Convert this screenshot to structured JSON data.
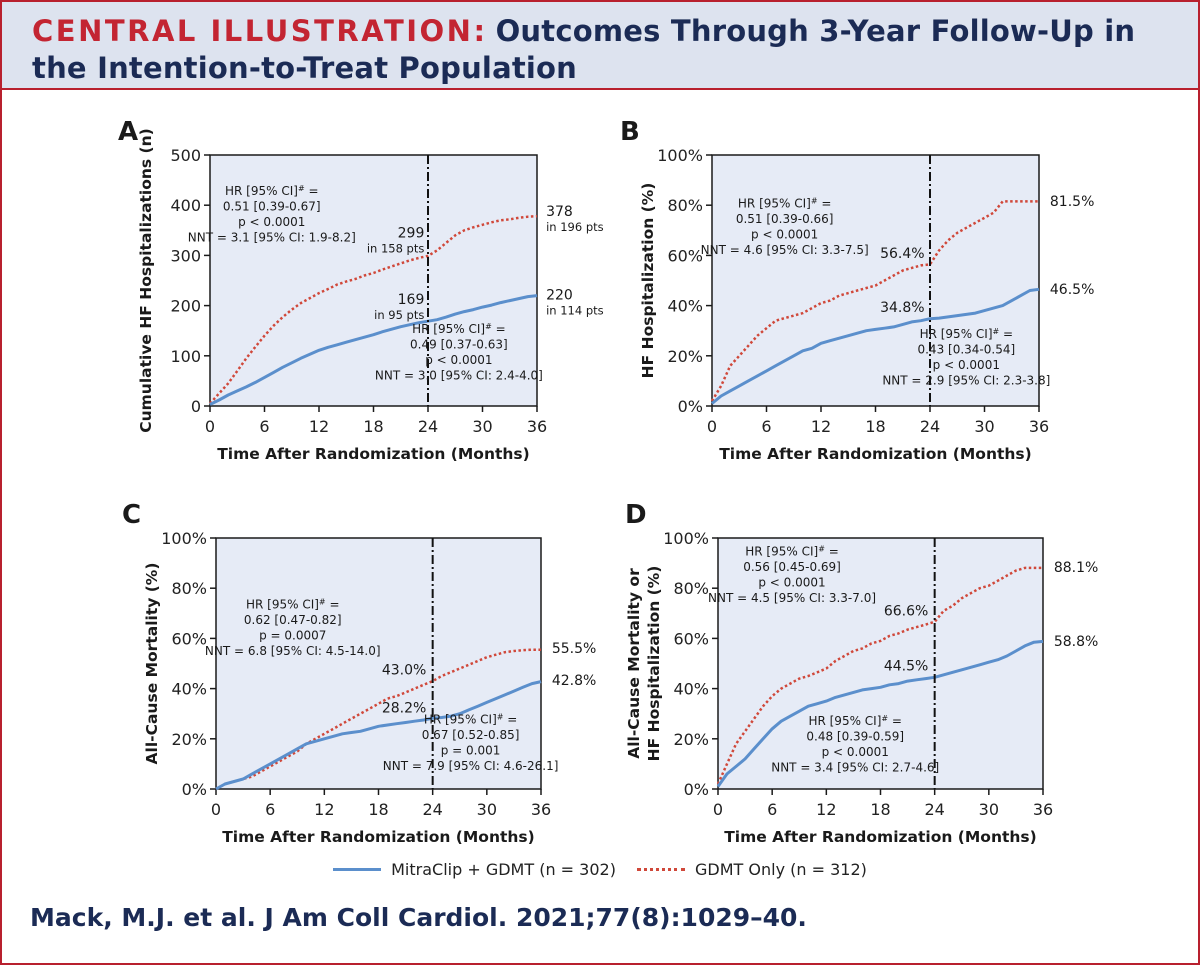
{
  "header": {
    "label": "CENTRAL ILLUSTRATION",
    "colon": ":",
    "title": "Outcomes Through 3-Year Follow-Up in the Intention-to-Treat Population"
  },
  "legend": {
    "mitraclip": "MitraClip + GDMT (n = 302)",
    "gdmt": "GDMT Only (n = 312)"
  },
  "citation": "Mack, M.J. et al. J Am Coll Cardiol. 2021;77(8):1029–40.",
  "colors": {
    "mitraclip": "#5b8fcc",
    "gdmt": "#d0483a",
    "plot_bg": "#e6ebf6",
    "frame": "#b8202e",
    "navy": "#1b2b55",
    "red": "#c32532"
  },
  "chart_data": [
    {
      "panel": "A",
      "type": "line",
      "xlabel": "Time After Randomization (Months)",
      "ylabel": [
        "Cumulative HF Hospitalizations (n)"
      ],
      "xlim": [
        0,
        36
      ],
      "ylim": [
        0,
        500
      ],
      "xticks": [
        0,
        6,
        12,
        18,
        24,
        30,
        36
      ],
      "yticks": [
        0,
        100,
        200,
        300,
        400,
        500
      ],
      "ytick_labels": [
        "0",
        "100",
        "200",
        "300",
        "400",
        "500"
      ],
      "vline_x": 24,
      "series": [
        {
          "name": "GDMT Only (n = 312)",
          "key": "gdmt",
          "x": [
            0,
            1,
            2,
            3,
            4,
            5,
            6,
            7,
            8,
            9,
            10,
            11,
            12,
            13,
            14,
            15,
            16,
            17,
            18,
            19,
            20,
            21,
            22,
            23,
            24,
            25,
            26,
            27,
            28,
            29,
            30,
            31,
            32,
            33,
            34,
            35,
            36
          ],
          "y": [
            5,
            25,
            45,
            70,
            95,
            118,
            140,
            160,
            177,
            192,
            205,
            215,
            225,
            233,
            242,
            248,
            253,
            260,
            265,
            272,
            278,
            284,
            290,
            295,
            299,
            310,
            325,
            340,
            350,
            356,
            361,
            366,
            370,
            372,
            375,
            377,
            378
          ]
        },
        {
          "name": "MitraClip + GDMT (n = 302)",
          "key": "mitraclip",
          "x": [
            0,
            1,
            2,
            3,
            4,
            5,
            6,
            7,
            8,
            9,
            10,
            11,
            12,
            13,
            14,
            15,
            16,
            17,
            18,
            19,
            20,
            21,
            22,
            23,
            24,
            25,
            26,
            27,
            28,
            29,
            30,
            31,
            32,
            33,
            34,
            35,
            36
          ],
          "y": [
            3,
            12,
            22,
            30,
            38,
            47,
            57,
            67,
            77,
            86,
            95,
            103,
            111,
            117,
            122,
            127,
            132,
            137,
            142,
            148,
            153,
            158,
            162,
            166,
            169,
            172,
            177,
            183,
            188,
            192,
            197,
            201,
            206,
            210,
            214,
            218,
            220
          ]
        }
      ],
      "annotations": [
        {
          "id": "hr_gdmt",
          "x": 6.8,
          "y": 420,
          "anchor": "middle",
          "lines": [
            "HR [95% CI]# =",
            "0.51 [0.39-0.67]",
            "p < 0.0001",
            "NNT = 3.1 [95% CI: 1.9-8.2]"
          ]
        },
        {
          "id": "hr_mitra",
          "x": 27.4,
          "y": 145,
          "anchor": "middle",
          "lines": [
            "HR [95% CI]# =",
            "0.49 [0.37-0.63]",
            "p < 0.0001",
            "NNT = 3.0 [95% CI: 2.4-4.0]"
          ]
        },
        {
          "id": "v24_gdmt",
          "x": 23.6,
          "y": 336,
          "anchor": "end",
          "big": "299",
          "small": "in 158 pts"
        },
        {
          "id": "v24_mitra",
          "x": 23.6,
          "y": 203,
          "anchor": "end",
          "big": "169",
          "small": "in 95 pts"
        },
        {
          "id": "end_gdmt",
          "x": 37.0,
          "y": 378,
          "anchor": "start",
          "big": "378",
          "small": "in 196 pts"
        },
        {
          "id": "end_mitra",
          "x": 37.0,
          "y": 212,
          "anchor": "start",
          "big": "220",
          "small": "in 114 pts"
        }
      ]
    },
    {
      "panel": "B",
      "type": "line",
      "xlabel": "Time After Randomization (Months)",
      "ylabel": [
        "HF Hospitalization (%)"
      ],
      "xlim": [
        0,
        36
      ],
      "ylim": [
        0,
        100
      ],
      "xticks": [
        0,
        6,
        12,
        18,
        24,
        30,
        36
      ],
      "yticks": [
        0,
        20,
        40,
        60,
        80,
        100
      ],
      "ytick_labels": [
        "0%",
        "20%",
        "40%",
        "60%",
        "80%",
        "100%"
      ],
      "vline_x": 24,
      "series": [
        {
          "name": "GDMT Only (n = 312)",
          "key": "gdmt",
          "x": [
            0,
            1,
            2,
            3,
            4,
            5,
            6,
            7,
            8,
            9,
            10,
            11,
            12,
            13,
            14,
            15,
            16,
            17,
            18,
            19,
            20,
            21,
            22,
            23,
            24,
            25,
            26,
            27,
            28,
            29,
            30,
            31,
            32,
            33,
            34,
            35,
            36
          ],
          "y": [
            2,
            8,
            16,
            20,
            24,
            28,
            31,
            34,
            35,
            36,
            37,
            39,
            41,
            42,
            44,
            45,
            46,
            47,
            48,
            50,
            52,
            54,
            55,
            56,
            56.4,
            62,
            66,
            69,
            71,
            73,
            75,
            77,
            81.5,
            81.5,
            81.5,
            81.5,
            81.5
          ]
        },
        {
          "name": "MitraClip + GDMT (n = 302)",
          "key": "mitraclip",
          "x": [
            0,
            1,
            2,
            3,
            4,
            5,
            6,
            7,
            8,
            9,
            10,
            11,
            12,
            13,
            14,
            15,
            16,
            17,
            18,
            19,
            20,
            21,
            22,
            23,
            24,
            25,
            26,
            27,
            28,
            29,
            30,
            31,
            32,
            33,
            34,
            35,
            36
          ],
          "y": [
            1,
            4,
            6,
            8,
            10,
            12,
            14,
            16,
            18,
            20,
            22,
            23,
            25,
            26,
            27,
            28,
            29,
            30,
            30.5,
            31,
            31.5,
            32.5,
            33.5,
            34,
            34.8,
            35,
            35.5,
            36,
            36.5,
            37,
            38,
            39,
            40,
            42,
            44,
            46,
            46.5
          ]
        }
      ],
      "annotations": [
        {
          "id": "hr_gdmt",
          "x": 8.0,
          "y": 79,
          "anchor": "middle",
          "lines": [
            "HR [95% CI]# =",
            "0.51 [0.39-0.66]",
            "p < 0.0001",
            "NNT = 4.6 [95% CI: 3.3-7.5]"
          ]
        },
        {
          "id": "hr_mitra",
          "x": 28.0,
          "y": 27,
          "anchor": "middle",
          "lines": [
            "HR [95% CI]# =",
            "0.43 [0.34-0.54]",
            "p < 0.0001",
            "NNT = 2.9 [95% CI: 2.3-3.8]"
          ]
        },
        {
          "id": "v24_gdmt",
          "x": 23.4,
          "y": 59,
          "anchor": "end",
          "big": "56.4%"
        },
        {
          "id": "v24_mitra",
          "x": 23.4,
          "y": 37.4,
          "anchor": "end",
          "big": "34.8%"
        },
        {
          "id": "end_gdmt",
          "x": 37.2,
          "y": 79.7,
          "anchor": "start",
          "big": "81.5%"
        },
        {
          "id": "end_mitra",
          "x": 37.2,
          "y": 44.7,
          "anchor": "start",
          "big": "46.5%"
        }
      ]
    },
    {
      "panel": "C",
      "type": "line",
      "xlabel": "Time After Randomization (Months)",
      "ylabel": [
        "All-Cause Mortality (%)"
      ],
      "xlim": [
        0,
        36
      ],
      "ylim": [
        0,
        100
      ],
      "xticks": [
        0,
        6,
        12,
        18,
        24,
        30,
        36
      ],
      "yticks": [
        0,
        20,
        40,
        60,
        80,
        100
      ],
      "ytick_labels": [
        "0%",
        "20%",
        "40%",
        "60%",
        "80%",
        "100%"
      ],
      "vline_x": 24,
      "series": [
        {
          "name": "GDMT Only (n = 312)",
          "key": "gdmt",
          "x": [
            0,
            1,
            2,
            3,
            4,
            5,
            6,
            7,
            8,
            9,
            10,
            11,
            12,
            13,
            14,
            15,
            16,
            17,
            18,
            19,
            20,
            21,
            22,
            23,
            24,
            25,
            26,
            27,
            28,
            29,
            30,
            31,
            32,
            33,
            34,
            35,
            36
          ],
          "y": [
            0,
            2,
            3,
            4,
            5,
            7,
            9,
            11,
            13,
            15,
            18,
            20,
            22,
            24,
            26,
            28,
            30,
            32,
            34,
            36,
            37,
            38.5,
            40,
            41.5,
            43,
            45,
            46.5,
            48,
            49.5,
            51,
            52.5,
            53.5,
            54.5,
            55,
            55.3,
            55.5,
            55.5
          ]
        },
        {
          "name": "MitraClip + GDMT (n = 302)",
          "key": "mitraclip",
          "x": [
            0,
            1,
            2,
            3,
            4,
            5,
            6,
            7,
            8,
            9,
            10,
            11,
            12,
            13,
            14,
            15,
            16,
            17,
            18,
            19,
            20,
            21,
            22,
            23,
            24,
            25,
            26,
            27,
            28,
            29,
            30,
            31,
            32,
            33,
            34,
            35,
            36
          ],
          "y": [
            0,
            2,
            3,
            4,
            6,
            8,
            10,
            12,
            14,
            16,
            18,
            19,
            20,
            21,
            22,
            22.5,
            23,
            24,
            25,
            25.5,
            26,
            26.5,
            27,
            27.5,
            28.2,
            28.5,
            29,
            30,
            31.5,
            33,
            34.5,
            36,
            37.5,
            39,
            40.5,
            42,
            42.8
          ]
        }
      ],
      "annotations": [
        {
          "id": "hr_gdmt",
          "x": 8.5,
          "y": 72,
          "anchor": "middle",
          "lines": [
            "HR [95% CI]# =",
            "0.62 [0.47-0.82]",
            "p = 0.0007",
            "NNT = 6.8 [95% CI: 4.5-14.0]"
          ]
        },
        {
          "id": "hr_mitra",
          "x": 28.2,
          "y": 26,
          "anchor": "middle",
          "lines": [
            "HR [95% CI]# =",
            "0.67 [0.52-0.85]",
            "p = 0.001",
            "NNT = 7.9 [95% CI: 4.6-26.1]"
          ]
        },
        {
          "id": "v24_gdmt",
          "x": 23.3,
          "y": 45.7,
          "anchor": "end",
          "big": "43.0%"
        },
        {
          "id": "v24_mitra",
          "x": 23.3,
          "y": 30.4,
          "anchor": "end",
          "big": "28.2%"
        },
        {
          "id": "end_gdmt",
          "x": 37.2,
          "y": 54.2,
          "anchor": "start",
          "big": "55.5%"
        },
        {
          "id": "end_mitra",
          "x": 37.2,
          "y": 41.4,
          "anchor": "start",
          "big": "42.8%"
        }
      ]
    },
    {
      "panel": "D",
      "type": "line",
      "xlabel": "Time After Randomization (Months)",
      "ylabel": [
        "All-Cause Mortality or",
        "HF Hospitalization (%)"
      ],
      "xlim": [
        0,
        36
      ],
      "ylim": [
        0,
        100
      ],
      "xticks": [
        0,
        6,
        12,
        18,
        24,
        30,
        36
      ],
      "yticks": [
        0,
        20,
        40,
        60,
        80,
        100
      ],
      "ytick_labels": [
        "0%",
        "20%",
        "40%",
        "60%",
        "80%",
        "100%"
      ],
      "vline_x": 24,
      "series": [
        {
          "name": "GDMT Only (n = 312)",
          "key": "gdmt",
          "x": [
            0,
            1,
            2,
            3,
            4,
            5,
            6,
            7,
            8,
            9,
            10,
            11,
            12,
            13,
            14,
            15,
            16,
            17,
            18,
            19,
            20,
            21,
            22,
            23,
            24,
            25,
            26,
            27,
            28,
            29,
            30,
            31,
            32,
            33,
            34,
            35,
            36
          ],
          "y": [
            2,
            10,
            18,
            23,
            28,
            33,
            37,
            40,
            42,
            44,
            45,
            46.5,
            48,
            51,
            53,
            55,
            56,
            58,
            59,
            61,
            62,
            63.5,
            64.5,
            65.5,
            66.6,
            71,
            73,
            76,
            78,
            80,
            81,
            83,
            85,
            87,
            88.1,
            88.1,
            88.1
          ]
        },
        {
          "name": "MitraClip + GDMT (n = 302)",
          "key": "mitraclip",
          "x": [
            0,
            1,
            2,
            3,
            4,
            5,
            6,
            7,
            8,
            9,
            10,
            11,
            12,
            13,
            14,
            15,
            16,
            17,
            18,
            19,
            20,
            21,
            22,
            23,
            24,
            25,
            26,
            27,
            28,
            29,
            30,
            31,
            32,
            33,
            34,
            35,
            36
          ],
          "y": [
            1,
            6,
            9,
            12,
            16,
            20,
            24,
            27,
            29,
            31,
            33,
            34,
            35,
            36.5,
            37.5,
            38.5,
            39.5,
            40,
            40.5,
            41.5,
            42,
            43,
            43.5,
            44,
            44.5,
            45.5,
            46.5,
            47.5,
            48.5,
            49.5,
            50.5,
            51.5,
            53,
            55,
            57,
            58.5,
            58.8
          ]
        }
      ],
      "annotations": [
        {
          "id": "hr_gdmt",
          "x": 8.2,
          "y": 93,
          "anchor": "middle",
          "lines": [
            "HR [95% CI]# =",
            "0.56 [0.45-0.69]",
            "p < 0.0001",
            "NNT = 4.5 [95% CI: 3.3-7.0]"
          ]
        },
        {
          "id": "hr_mitra",
          "x": 15.2,
          "y": 25.5,
          "anchor": "middle",
          "lines": [
            "HR [95% CI]# =",
            "0.48 [0.39-0.59]",
            "p < 0.0001",
            "NNT = 3.4 [95% CI: 2.7-4.6]"
          ]
        },
        {
          "id": "v24_gdmt",
          "x": 23.3,
          "y": 69.2,
          "anchor": "end",
          "big": "66.6%"
        },
        {
          "id": "v24_mitra",
          "x": 23.3,
          "y": 47.3,
          "anchor": "end",
          "big": "44.5%"
        },
        {
          "id": "end_gdmt",
          "x": 37.2,
          "y": 86.4,
          "anchor": "start",
          "big": "88.1%"
        },
        {
          "id": "end_mitra",
          "x": 37.2,
          "y": 57.0,
          "anchor": "start",
          "big": "58.8%"
        }
      ]
    }
  ]
}
